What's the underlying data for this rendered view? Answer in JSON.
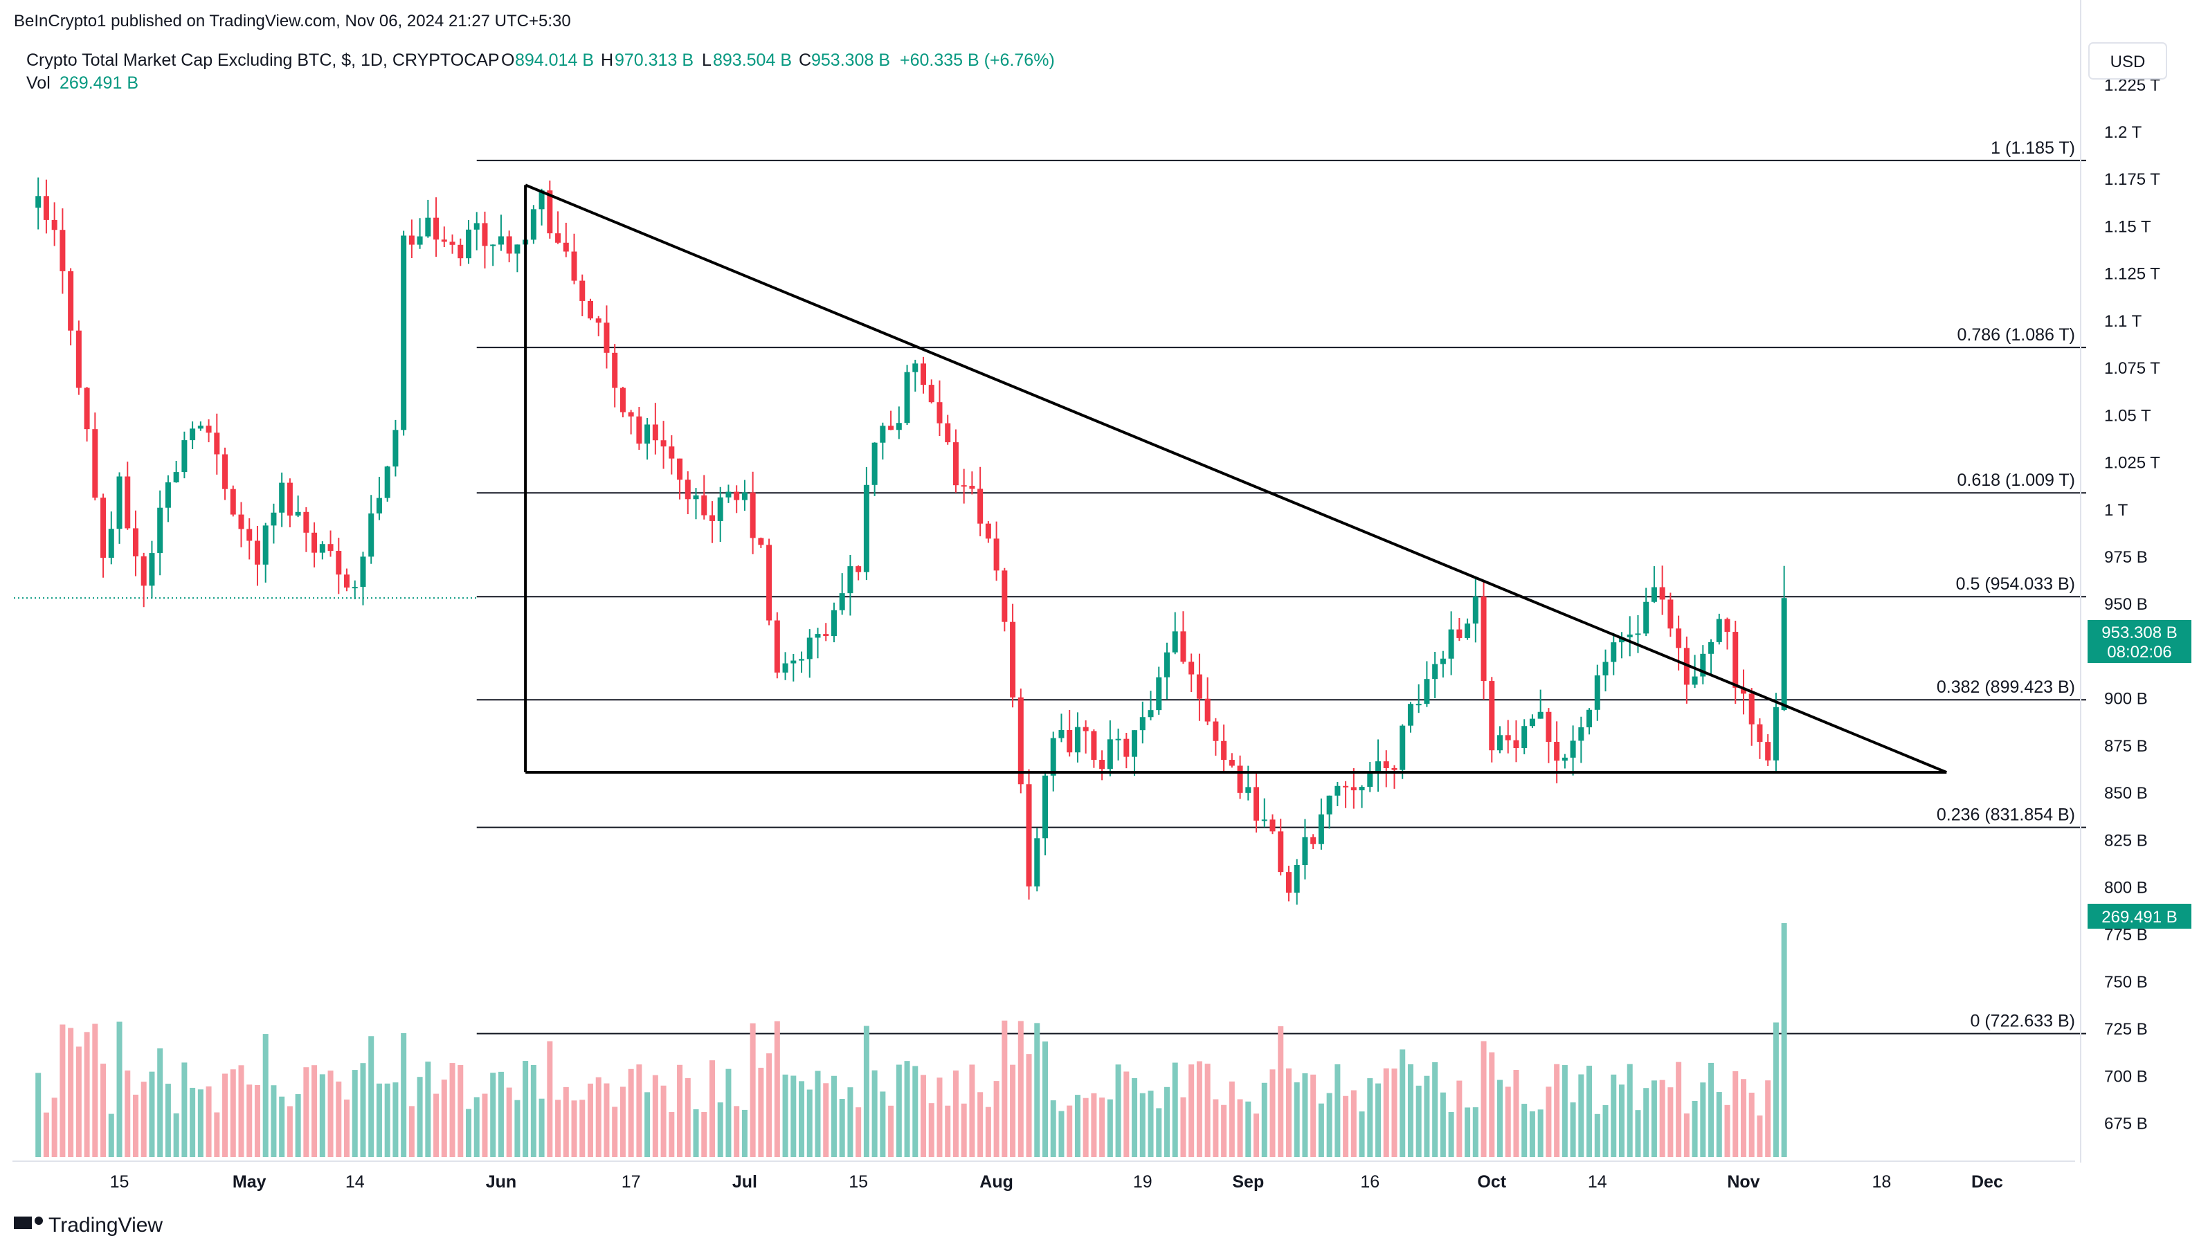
{
  "header": {
    "published": "BeInCrypto1 published on TradingView.com, Nov 06, 2024 21:27 UTC+5:30",
    "symbol": "Crypto Total Market Cap Excluding BTC, $, 1D, CRYPTOCAP",
    "o_label": "O",
    "o_value": "894.014 B",
    "h_label": "H",
    "h_value": "970.313 B",
    "l_label": "L",
    "l_value": "893.504 B",
    "c_label": "C",
    "c_value": "953.308 B",
    "change": "+60.335 B (+6.76%)",
    "vol_label": "Vol",
    "vol_value": "269.491 B"
  },
  "currency_button": "USD",
  "footer": {
    "brand": "TradingView"
  },
  "colors": {
    "up": "#089981",
    "down": "#f23645",
    "up_vol": "#7fcbbf",
    "down_vol": "#f7a9af",
    "text": "#131722"
  },
  "price_badge": {
    "price": "953.308 B",
    "countdown": "08:02:06"
  },
  "vol_badge": "269.491 B",
  "chart_data": {
    "type": "candlestick",
    "title": "Crypto Total Market Cap Excluding BTC, $, 1D, CRYPTOCAP",
    "y_unit": "USD",
    "ylim": [
      669,
      1248
    ],
    "y_ticks": [
      "1.225 T",
      "1.2 T",
      "1.175 T",
      "1.15 T",
      "1.125 T",
      "1.1 T",
      "1.075 T",
      "1.05 T",
      "1.025 T",
      "1 T",
      "975 B",
      "950 B",
      "925 B",
      "900 B",
      "875 B",
      "850 B",
      "825 B",
      "800 B",
      "775 B",
      "750 B",
      "725 B",
      "700 B",
      "675 B"
    ],
    "y_tick_values": [
      1225,
      1200,
      1175,
      1150,
      1125,
      1100,
      1075,
      1050,
      1025,
      1000,
      975,
      950,
      925,
      900,
      875,
      850,
      825,
      800,
      775,
      750,
      725,
      700,
      675
    ],
    "x_ticks": [
      {
        "label": "15",
        "date": "2024-04-15"
      },
      {
        "label": "May",
        "date": "2024-05-01"
      },
      {
        "label": "14",
        "date": "2024-05-14"
      },
      {
        "label": "Jun",
        "date": "2024-06-01"
      },
      {
        "label": "17",
        "date": "2024-06-17"
      },
      {
        "label": "Jul",
        "date": "2024-07-01"
      },
      {
        "label": "15",
        "date": "2024-07-15"
      },
      {
        "label": "Aug",
        "date": "2024-08-01"
      },
      {
        "label": "19",
        "date": "2024-08-19"
      },
      {
        "label": "Sep",
        "date": "2024-09-01"
      },
      {
        "label": "16",
        "date": "2024-09-16"
      },
      {
        "label": "Oct",
        "date": "2024-10-01"
      },
      {
        "label": "14",
        "date": "2024-10-14"
      },
      {
        "label": "Nov",
        "date": "2024-11-01"
      },
      {
        "label": "18",
        "date": "2024-11-18"
      },
      {
        "label": "Dec",
        "date": "2024-12-01"
      }
    ],
    "closes": [
      {
        "date": "2024-04-05",
        "close": 1160
      },
      {
        "date": "2024-04-07",
        "close": 1145
      },
      {
        "date": "2024-04-09",
        "close": 1100
      },
      {
        "date": "2024-04-11",
        "close": 1040
      },
      {
        "date": "2024-04-13",
        "close": 975
      },
      {
        "date": "2024-04-15",
        "close": 1010
      },
      {
        "date": "2024-04-18",
        "close": 960
      },
      {
        "date": "2024-04-20",
        "close": 1000
      },
      {
        "date": "2024-04-24",
        "close": 1050
      },
      {
        "date": "2024-04-27",
        "close": 1030
      },
      {
        "date": "2024-04-30",
        "close": 990
      },
      {
        "date": "2024-05-02",
        "close": 975
      },
      {
        "date": "2024-05-05",
        "close": 1010
      },
      {
        "date": "2024-05-08",
        "close": 990
      },
      {
        "date": "2024-05-11",
        "close": 975
      },
      {
        "date": "2024-05-14",
        "close": 960
      },
      {
        "date": "2024-05-17",
        "close": 1010
      },
      {
        "date": "2024-05-19",
        "close": 1045
      },
      {
        "date": "2024-05-20",
        "close": 1140
      },
      {
        "date": "2024-05-23",
        "close": 1150
      },
      {
        "date": "2024-05-26",
        "close": 1135
      },
      {
        "date": "2024-05-29",
        "close": 1150
      },
      {
        "date": "2024-06-01",
        "close": 1140
      },
      {
        "date": "2024-06-04",
        "close": 1150
      },
      {
        "date": "2024-06-06",
        "close": 1165
      },
      {
        "date": "2024-06-09",
        "close": 1130
      },
      {
        "date": "2024-06-12",
        "close": 1105
      },
      {
        "date": "2024-06-15",
        "close": 1065
      },
      {
        "date": "2024-06-18",
        "close": 1040
      },
      {
        "date": "2024-06-21",
        "close": 1040
      },
      {
        "date": "2024-06-24",
        "close": 1000
      },
      {
        "date": "2024-06-27",
        "close": 1000
      },
      {
        "date": "2024-07-01",
        "close": 1005
      },
      {
        "date": "2024-07-03",
        "close": 975
      },
      {
        "date": "2024-07-05",
        "close": 910
      },
      {
        "date": "2024-07-08",
        "close": 925
      },
      {
        "date": "2024-07-11",
        "close": 935
      },
      {
        "date": "2024-07-15",
        "close": 975
      },
      {
        "date": "2024-07-17",
        "close": 1040
      },
      {
        "date": "2024-07-20",
        "close": 1050
      },
      {
        "date": "2024-07-22",
        "close": 1080
      },
      {
        "date": "2024-07-24",
        "close": 1050
      },
      {
        "date": "2024-07-27",
        "close": 1020
      },
      {
        "date": "2024-07-30",
        "close": 1000
      },
      {
        "date": "2024-08-02",
        "close": 940
      },
      {
        "date": "2024-08-04",
        "close": 860
      },
      {
        "date": "2024-08-05",
        "close": 805
      },
      {
        "date": "2024-08-08",
        "close": 875
      },
      {
        "date": "2024-08-11",
        "close": 880
      },
      {
        "date": "2024-08-14",
        "close": 870
      },
      {
        "date": "2024-08-17",
        "close": 875
      },
      {
        "date": "2024-08-20",
        "close": 890
      },
      {
        "date": "2024-08-23",
        "close": 935
      },
      {
        "date": "2024-08-26",
        "close": 905
      },
      {
        "date": "2024-08-29",
        "close": 870
      },
      {
        "date": "2024-09-01",
        "close": 850
      },
      {
        "date": "2024-09-03",
        "close": 835
      },
      {
        "date": "2024-09-06",
        "close": 800
      },
      {
        "date": "2024-09-09",
        "close": 830
      },
      {
        "date": "2024-09-12",
        "close": 855
      },
      {
        "date": "2024-09-15",
        "close": 860
      },
      {
        "date": "2024-09-18",
        "close": 860
      },
      {
        "date": "2024-09-20",
        "close": 880
      },
      {
        "date": "2024-09-23",
        "close": 910
      },
      {
        "date": "2024-09-26",
        "close": 935
      },
      {
        "date": "2024-09-29",
        "close": 950
      },
      {
        "date": "2024-10-01",
        "close": 880
      },
      {
        "date": "2024-10-04",
        "close": 875
      },
      {
        "date": "2024-10-07",
        "close": 885
      },
      {
        "date": "2024-10-10",
        "close": 870
      },
      {
        "date": "2024-10-14",
        "close": 905
      },
      {
        "date": "2024-10-16",
        "close": 930
      },
      {
        "date": "2024-10-19",
        "close": 935
      },
      {
        "date": "2024-10-21",
        "close": 955
      },
      {
        "date": "2024-10-23",
        "close": 935
      },
      {
        "date": "2024-10-25",
        "close": 905
      },
      {
        "date": "2024-10-27",
        "close": 920
      },
      {
        "date": "2024-10-29",
        "close": 950
      },
      {
        "date": "2024-10-31",
        "close": 910
      },
      {
        "date": "2024-11-02",
        "close": 880
      },
      {
        "date": "2024-11-04",
        "close": 875
      },
      {
        "date": "2024-11-05",
        "close": 894
      },
      {
        "date": "2024-11-06",
        "open": 894.014,
        "high": 970.313,
        "low": 893.504,
        "close": 953.308
      }
    ],
    "fibonacci": [
      {
        "label": "1 (1.185 T)",
        "value": 1185
      },
      {
        "label": "0.786 (1.086 T)",
        "value": 1086
      },
      {
        "label": "0.618 (1.009 T)",
        "value": 1009
      },
      {
        "label": "0.5 (954.033 B)",
        "value": 954.033
      },
      {
        "label": "0.382 (899.423 B)",
        "value": 899.423
      },
      {
        "label": "0.236 (831.854 B)",
        "value": 831.854
      },
      {
        "label": "0 (722.633 B)",
        "value": 722.633
      }
    ],
    "trendlines": [
      {
        "name": "descending",
        "from": {
          "date": "2024-06-04",
          "price": 1172
        },
        "to": {
          "date": "2024-11-26",
          "price": 861
        }
      },
      {
        "name": "support",
        "from": {
          "date": "2024-06-04",
          "price": 861
        },
        "to": {
          "date": "2024-11-26",
          "price": 861
        }
      },
      {
        "name": "vertical",
        "date": "2024-06-04",
        "from_price": 861,
        "to_price": 1172
      }
    ],
    "volume_last": 269.491,
    "grid": false
  }
}
